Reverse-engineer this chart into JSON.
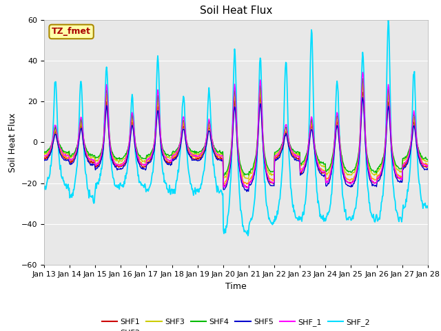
{
  "title": "Soil Heat Flux",
  "xlabel": "Time",
  "ylabel": "Soil Heat Flux",
  "ylim": [
    -60,
    60
  ],
  "x_tick_labels": [
    "Jan 13",
    "Jan 14",
    "Jan 15",
    "Jan 16",
    "Jan 17",
    "Jan 18",
    "Jan 19",
    "Jan 20",
    "Jan 21",
    "Jan 22",
    "Jan 23",
    "Jan 24",
    "Jan 25",
    "Jan 26",
    "Jan 27",
    "Jan 28"
  ],
  "series_colors": {
    "SHF1": "#cc0000",
    "SHF2": "#ff9900",
    "SHF3": "#cccc00",
    "SHF4": "#00bb00",
    "SHF5": "#0000cc",
    "SHF_1": "#ff00ff",
    "SHF_2": "#00ddff"
  },
  "annotation_text": "TZ_fmet",
  "annotation_bg": "#ffffaa",
  "annotation_border": "#aa8800",
  "annotation_text_color": "#aa0000",
  "plot_bg_color": "#e8e8e8",
  "grid_color": "white",
  "title_fontsize": 11,
  "label_fontsize": 9,
  "tick_fontsize": 8
}
